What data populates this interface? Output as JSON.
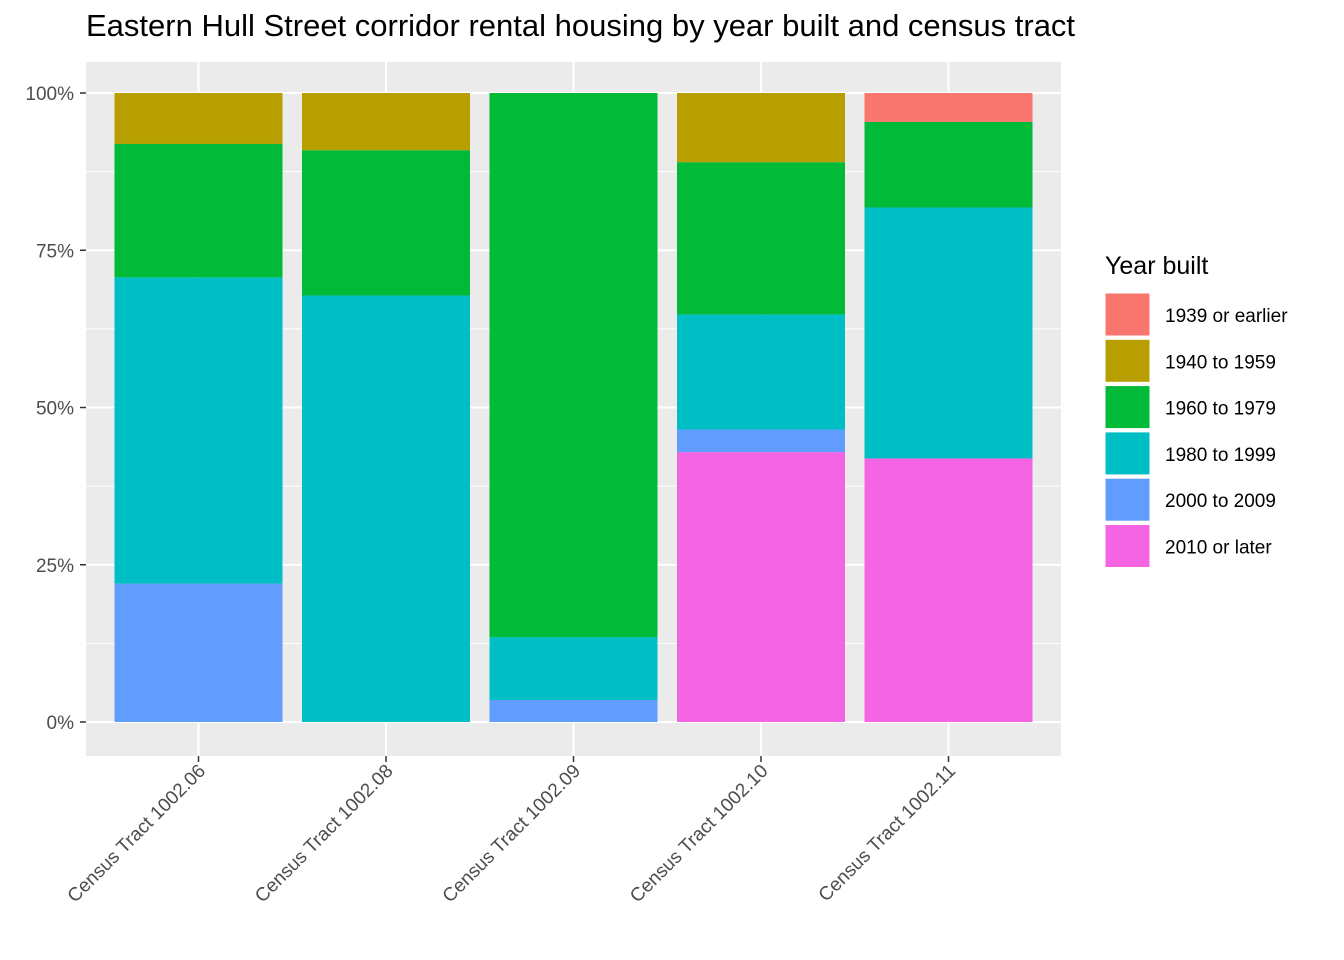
{
  "chart_data": {
    "type": "bar",
    "stacked": true,
    "title": "Eastern Hull Street corridor rental housing by year built and census tract",
    "xlabel": "",
    "ylabel": "",
    "ylim": [
      0,
      1
    ],
    "y_ticks": [
      {
        "value": 0,
        "label": "0%"
      },
      {
        "value": 0.25,
        "label": "25%"
      },
      {
        "value": 0.5,
        "label": "50%"
      },
      {
        "value": 0.75,
        "label": "75%"
      },
      {
        "value": 1,
        "label": "100%"
      }
    ],
    "grid": true,
    "legend": {
      "title": "Year built",
      "position": "right"
    },
    "categories": [
      "Census Tract 1002.06",
      "Census Tract 1002.08",
      "Census Tract 1002.09",
      "Census Tract 1002.10",
      "Census Tract 1002.11"
    ],
    "series": [
      {
        "name": "1939 or earlier",
        "color": "#F8766D",
        "values": [
          0,
          0,
          0,
          0,
          0.046
        ]
      },
      {
        "name": "1940 to 1959",
        "color": "#B79F00",
        "values": [
          0.081,
          0.091,
          0,
          0.11,
          0
        ]
      },
      {
        "name": "1960 to 1979",
        "color": "#00BA38",
        "values": [
          0.212,
          0.231,
          0.865,
          0.242,
          0.136
        ]
      },
      {
        "name": "1980 to 1999",
        "color": "#00BFC4",
        "values": [
          0.487,
          0.678,
          0.1,
          0.183,
          0.399
        ]
      },
      {
        "name": "2000 to 2009",
        "color": "#619CFF",
        "values": [
          0.22,
          0,
          0.035,
          0.036,
          0
        ]
      },
      {
        "name": "2010 or later",
        "color": "#F564E3",
        "values": [
          0,
          0,
          0,
          0.429,
          0.419
        ]
      }
    ]
  }
}
